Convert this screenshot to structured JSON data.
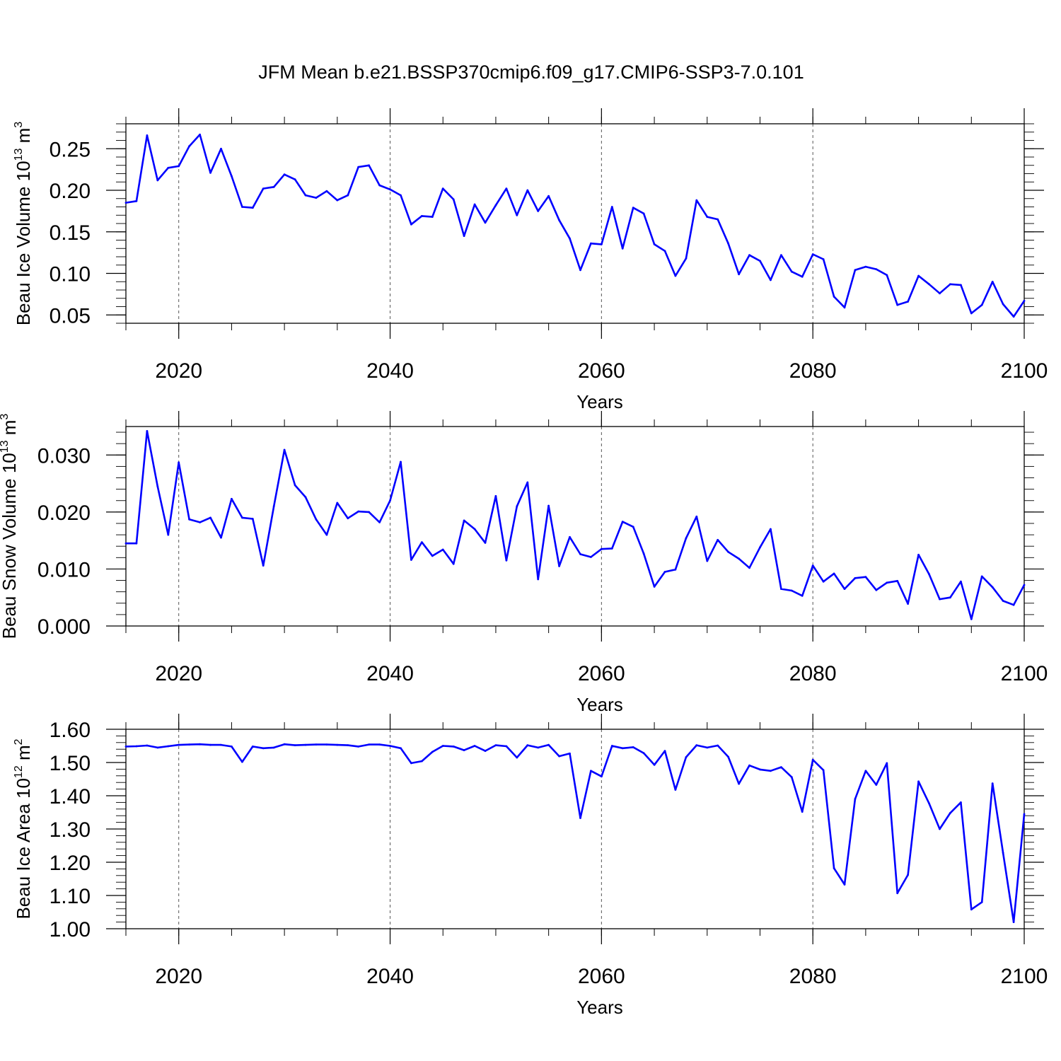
{
  "title": "JFM Mean b.e21.BSSP370cmip6.f09_g17.CMIP6-SSP3-7.0.101",
  "colors": {
    "series": "#0000ff",
    "axes": "#000000",
    "grid": "#555555"
  },
  "chart_data": [
    {
      "type": "line",
      "title": "JFM Mean b.e21.BSSP370cmip6.f09_g17.CMIP6-SSP3-7.0.101",
      "xlabel": "Years",
      "ylabel_main": "Beau Ice Volume 10",
      "ylabel_exp": "13",
      "ylabel_unit": " m",
      "ylabel_unit_exp": "3",
      "xlim": [
        2015,
        2100
      ],
      "ylim": [
        0.04,
        0.28
      ],
      "xticks": [
        2020,
        2040,
        2060,
        2080,
        2100
      ],
      "xtick_labels": [
        "2020",
        "2040",
        "2060",
        "2080",
        "2100"
      ],
      "yticks": [
        0.05,
        0.1,
        0.15,
        0.2,
        0.25
      ],
      "ytick_labels": [
        "0.05",
        "0.10",
        "0.15",
        "0.20",
        "0.25"
      ],
      "x_start": 2015,
      "values": [
        0.185,
        0.187,
        0.266,
        0.212,
        0.227,
        0.229,
        0.253,
        0.267,
        0.221,
        0.25,
        0.217,
        0.18,
        0.179,
        0.202,
        0.204,
        0.219,
        0.213,
        0.194,
        0.191,
        0.199,
        0.188,
        0.194,
        0.228,
        0.23,
        0.206,
        0.201,
        0.194,
        0.159,
        0.169,
        0.168,
        0.202,
        0.189,
        0.145,
        0.183,
        0.161,
        0.182,
        0.202,
        0.17,
        0.2,
        0.175,
        0.193,
        0.164,
        0.142,
        0.104,
        0.136,
        0.135,
        0.18,
        0.13,
        0.179,
        0.172,
        0.135,
        0.127,
        0.097,
        0.118,
        0.188,
        0.168,
        0.165,
        0.136,
        0.099,
        0.122,
        0.115,
        0.092,
        0.122,
        0.102,
        0.096,
        0.123,
        0.117,
        0.072,
        0.059,
        0.104,
        0.108,
        0.105,
        0.098,
        0.062,
        0.066,
        0.097,
        0.087,
        0.076,
        0.087,
        0.086,
        0.052,
        0.062,
        0.09,
        0.063,
        0.048,
        0.067
      ]
    },
    {
      "type": "line",
      "xlabel": "Years",
      "ylabel_main": "Beau Snow Volume 10",
      "ylabel_exp": "13",
      "ylabel_unit": " m",
      "ylabel_unit_exp": "3",
      "xlim": [
        2015,
        2100
      ],
      "ylim": [
        0.0,
        0.035
      ],
      "xticks": [
        2020,
        2040,
        2060,
        2080,
        2100
      ],
      "xtick_labels": [
        "2020",
        "2040",
        "2060",
        "2080",
        "2100"
      ],
      "yticks": [
        0.0,
        0.01,
        0.02,
        0.03
      ],
      "ytick_labels": [
        "0.000",
        "0.010",
        "0.020",
        "0.030"
      ],
      "x_start": 2015,
      "values": [
        0.0145,
        0.0145,
        0.0342,
        0.0245,
        0.016,
        0.0287,
        0.0187,
        0.0182,
        0.019,
        0.0155,
        0.0223,
        0.019,
        0.0188,
        0.0106,
        0.021,
        0.0309,
        0.0247,
        0.0226,
        0.0187,
        0.016,
        0.0216,
        0.0189,
        0.0201,
        0.02,
        0.0182,
        0.022,
        0.0288,
        0.0116,
        0.0147,
        0.0123,
        0.0134,
        0.0109,
        0.0185,
        0.017,
        0.0146,
        0.0228,
        0.0115,
        0.021,
        0.0252,
        0.0082,
        0.0211,
        0.0105,
        0.0156,
        0.0126,
        0.0121,
        0.0135,
        0.0136,
        0.0183,
        0.0174,
        0.0127,
        0.0069,
        0.0095,
        0.0099,
        0.0154,
        0.0192,
        0.0114,
        0.0151,
        0.013,
        0.0118,
        0.0102,
        0.0138,
        0.017,
        0.0065,
        0.0062,
        0.0053,
        0.0106,
        0.0078,
        0.0092,
        0.0065,
        0.0084,
        0.0086,
        0.0063,
        0.0076,
        0.0079,
        0.0039,
        0.0125,
        0.0091,
        0.0047,
        0.005,
        0.0078,
        0.0012,
        0.0087,
        0.0068,
        0.0044,
        0.0037,
        0.0072
      ]
    },
    {
      "type": "line",
      "xlabel": "Years",
      "ylabel_main": "Beau Ice Area 10",
      "ylabel_exp": "12",
      "ylabel_unit": " m",
      "ylabel_unit_exp": "2",
      "xlim": [
        2015,
        2100
      ],
      "ylim": [
        1.0,
        1.6
      ],
      "xticks": [
        2020,
        2040,
        2060,
        2080,
        2100
      ],
      "xtick_labels": [
        "2020",
        "2040",
        "2060",
        "2080",
        "2100"
      ],
      "yticks": [
        1.0,
        1.1,
        1.2,
        1.3,
        1.4,
        1.5,
        1.6
      ],
      "ytick_labels": [
        "1.00",
        "1.10",
        "1.20",
        "1.30",
        "1.40",
        "1.50",
        "1.60"
      ],
      "x_start": 2015,
      "values": [
        1.548,
        1.549,
        1.551,
        1.545,
        1.549,
        1.553,
        1.554,
        1.555,
        1.553,
        1.553,
        1.548,
        1.502,
        1.548,
        1.543,
        1.545,
        1.555,
        1.552,
        1.553,
        1.554,
        1.554,
        1.553,
        1.552,
        1.548,
        1.554,
        1.554,
        1.55,
        1.543,
        1.498,
        1.504,
        1.532,
        1.55,
        1.548,
        1.537,
        1.55,
        1.535,
        1.552,
        1.549,
        1.515,
        1.552,
        1.545,
        1.553,
        1.519,
        1.527,
        1.333,
        1.475,
        1.458,
        1.55,
        1.543,
        1.546,
        1.528,
        1.493,
        1.535,
        1.418,
        1.516,
        1.552,
        1.545,
        1.551,
        1.517,
        1.436,
        1.491,
        1.479,
        1.475,
        1.486,
        1.456,
        1.352,
        1.508,
        1.477,
        1.182,
        1.133,
        1.39,
        1.475,
        1.433,
        1.498,
        1.107,
        1.162,
        1.443,
        1.377,
        1.3,
        1.348,
        1.38,
        1.058,
        1.08,
        1.437,
        1.228,
        1.02,
        1.345
      ]
    }
  ]
}
